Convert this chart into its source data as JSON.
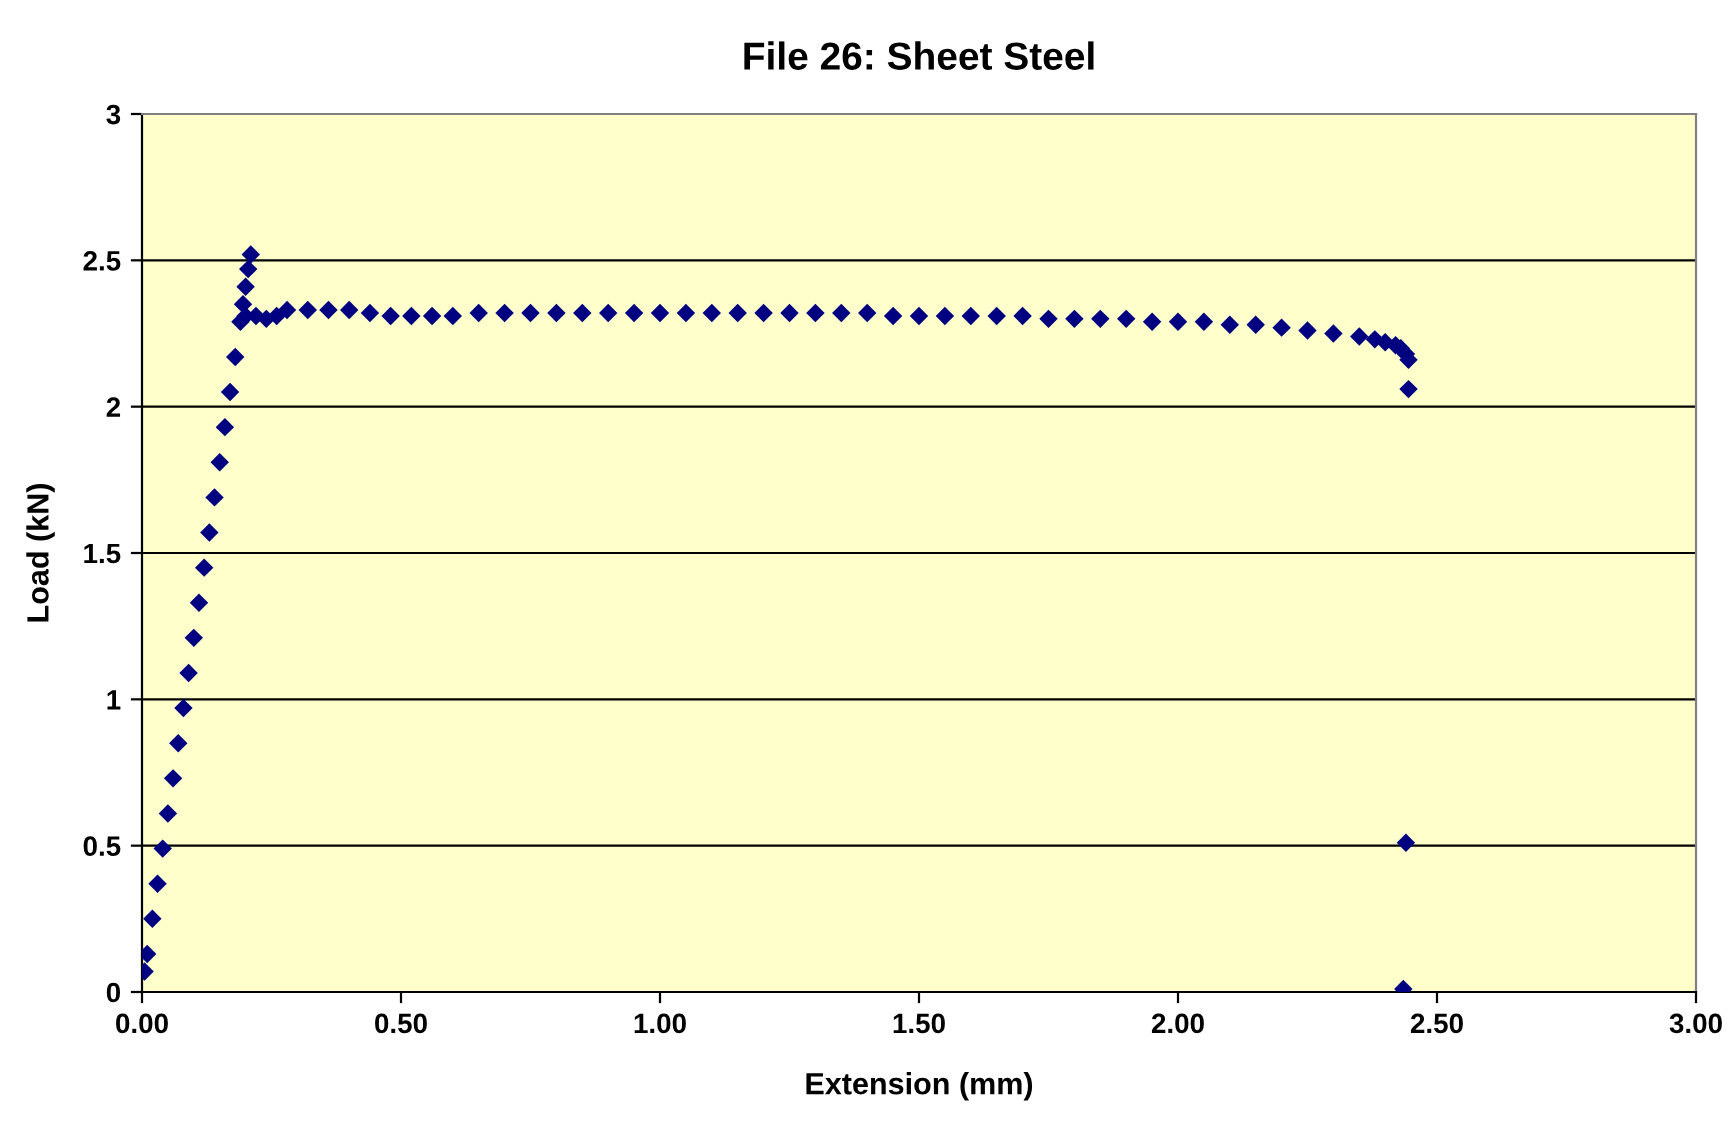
{
  "chart_data": {
    "type": "scatter",
    "title": "File 26: Sheet Steel",
    "xlabel": "Extension (mm)",
    "ylabel": "Load (kN)",
    "series": [
      {
        "color": "#000080",
        "x": [
          0.005,
          0.01,
          0.02,
          0.03,
          0.04,
          0.05,
          0.06,
          0.07,
          0.08,
          0.09,
          0.1,
          0.11,
          0.12,
          0.13,
          0.14,
          0.15,
          0.16,
          0.17,
          0.18,
          0.19,
          0.195,
          0.2,
          0.205,
          0.21,
          0.2,
          0.22,
          0.24,
          0.26,
          0.28,
          0.32,
          0.36,
          0.4,
          0.44,
          0.48,
          0.52,
          0.56,
          0.6,
          0.65,
          0.7,
          0.75,
          0.8,
          0.85,
          0.9,
          0.95,
          1.0,
          1.05,
          1.1,
          1.15,
          1.2,
          1.25,
          1.3,
          1.35,
          1.4,
          1.45,
          1.5,
          1.55,
          1.6,
          1.65,
          1.7,
          1.75,
          1.8,
          1.85,
          1.9,
          1.95,
          2.0,
          2.05,
          2.1,
          2.15,
          2.2,
          2.25,
          2.3,
          2.35,
          2.38,
          2.4,
          2.42,
          2.43,
          2.44,
          2.445,
          2.445,
          2.44,
          2.435
        ],
        "values": [
          0.07,
          0.13,
          0.25,
          0.37,
          0.49,
          0.61,
          0.73,
          0.85,
          0.97,
          1.09,
          1.21,
          1.33,
          1.45,
          1.57,
          1.69,
          1.81,
          1.93,
          2.05,
          2.17,
          2.29,
          2.35,
          2.41,
          2.47,
          2.52,
          2.31,
          2.31,
          2.3,
          2.31,
          2.33,
          2.33,
          2.33,
          2.33,
          2.32,
          2.31,
          2.31,
          2.31,
          2.31,
          2.32,
          2.32,
          2.32,
          2.32,
          2.32,
          2.32,
          2.32,
          2.32,
          2.32,
          2.32,
          2.32,
          2.32,
          2.32,
          2.32,
          2.32,
          2.32,
          2.31,
          2.31,
          2.31,
          2.31,
          2.31,
          2.31,
          2.3,
          2.3,
          2.3,
          2.3,
          2.29,
          2.29,
          2.29,
          2.28,
          2.28,
          2.27,
          2.26,
          2.25,
          2.24,
          2.23,
          2.22,
          2.21,
          2.2,
          2.18,
          2.16,
          2.06,
          0.51,
          0.01
        ]
      }
    ],
    "marker": "diamond",
    "xlim": [
      0,
      3
    ],
    "xticks": [
      {
        "value": 0,
        "label": "0.00"
      },
      {
        "value": 0.5,
        "label": "0.50"
      },
      {
        "value": 1,
        "label": "1.00"
      },
      {
        "value": 1.5,
        "label": "1.50"
      },
      {
        "value": 2,
        "label": "2.00"
      },
      {
        "value": 2.5,
        "label": "2.50"
      },
      {
        "value": 3,
        "label": "3.00"
      }
    ],
    "ylim": [
      0,
      3
    ],
    "yticks": [
      0,
      0.5,
      1,
      1.5,
      2,
      2.5,
      3
    ],
    "grid": "y"
  }
}
